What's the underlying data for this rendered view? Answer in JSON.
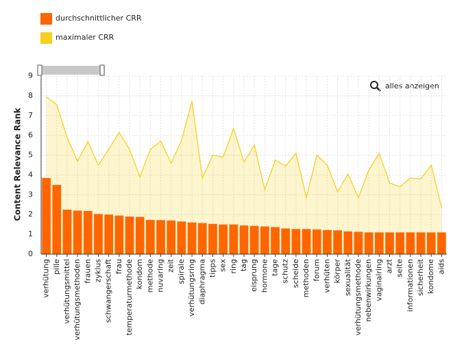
{
  "chart_data": {
    "type": "bar",
    "y_label": "Content Relevance Rank",
    "zoom_button": "alles anzeigen",
    "categories": [
      "verhütung",
      "pille",
      "verhütungsmittel",
      "verhütungsmethoden",
      "frauen",
      "zyklus",
      "schwangerschaft",
      "frau",
      "temperaturmethode",
      "kondom",
      "methode",
      "nuvaring",
      "zeit",
      "spirale",
      "verhütungsring",
      "diaphragma",
      "tipps",
      "sex",
      "ring",
      "tag",
      "eisprung",
      "hormone",
      "tage",
      "schutz",
      "scheide",
      "methoden",
      "forum",
      "verhüten",
      "körper",
      "sexualität",
      "verhütungsmethode",
      "nebenwirkungen",
      "vaginalring",
      "arzt",
      "seite",
      "informationen",
      "sicherheit",
      "kondome",
      "aids"
    ],
    "series": [
      {
        "name": "durchschnittlicher CRR",
        "type": "bar",
        "color": "#ff6600",
        "values": [
          3.85,
          3.5,
          2.25,
          2.2,
          2.18,
          2.03,
          2.0,
          1.95,
          1.9,
          1.88,
          1.73,
          1.72,
          1.7,
          1.65,
          1.6,
          1.57,
          1.53,
          1.5,
          1.5,
          1.45,
          1.43,
          1.4,
          1.37,
          1.3,
          1.27,
          1.27,
          1.25,
          1.22,
          1.2,
          1.15,
          1.13,
          1.1,
          1.1,
          1.1,
          1.1,
          1.1,
          1.1,
          1.1,
          1.1
        ]
      },
      {
        "name": "maximaler CRR",
        "type": "area",
        "color": "#f5d020",
        "values": [
          7.95,
          7.55,
          5.9,
          4.7,
          5.7,
          4.5,
          5.3,
          6.15,
          5.3,
          3.9,
          5.3,
          5.7,
          4.6,
          5.75,
          7.75,
          3.85,
          5.0,
          4.9,
          6.35,
          4.65,
          5.5,
          3.25,
          4.75,
          4.45,
          5.1,
          2.85,
          5.0,
          4.5,
          3.15,
          4.05,
          2.85,
          4.25,
          5.1,
          3.6,
          3.4,
          3.85,
          3.8,
          4.5,
          2.35
        ]
      }
    ],
    "ylim": [
      0,
      9
    ],
    "yticks": [
      0,
      1,
      2,
      3,
      4,
      5,
      6,
      7,
      8,
      9
    ],
    "grid": true
  }
}
